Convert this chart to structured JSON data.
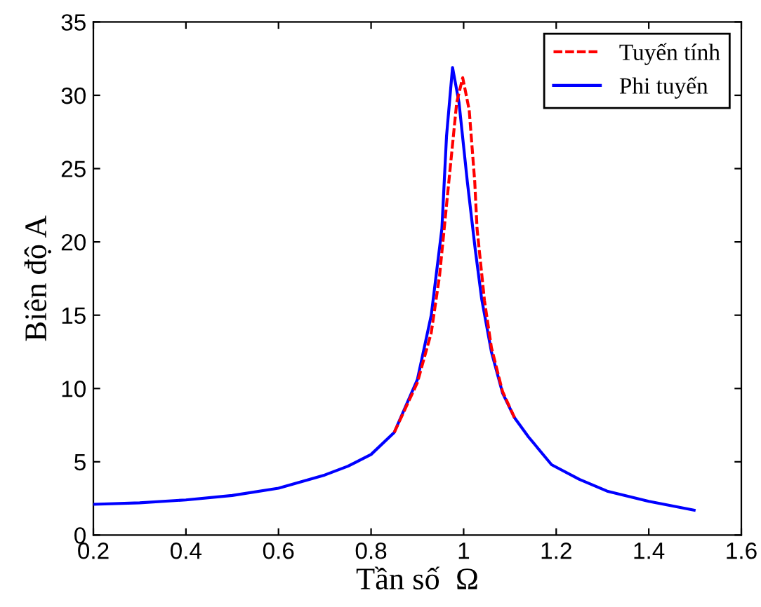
{
  "chart_data": {
    "type": "line",
    "xlabel": "Tần số  Ω",
    "ylabel": "Biên độ A",
    "xlim": [
      0.2,
      1.6
    ],
    "xticks": [
      0.2,
      0.4,
      0.6,
      0.8,
      1,
      1.2,
      1.4,
      1.6
    ],
    "ylim": [
      0,
      35
    ],
    "yticks": [
      0,
      5,
      10,
      15,
      20,
      25,
      30,
      35
    ],
    "grid": false,
    "legend": "top right",
    "series": [
      {
        "name": "Tuyến tính",
        "color": "#ff0000",
        "line_style": "dashed",
        "x": [
          0.85,
          0.9,
          0.93,
          0.948,
          0.968,
          0.985,
          0.998,
          1.012,
          1.024,
          1.029,
          1.045,
          1.06,
          1.084,
          1.11
        ],
        "values": [
          7.0,
          10.4,
          13.8,
          17.7,
          24.1,
          29.5,
          31.2,
          29.0,
          24.1,
          20.9,
          16.0,
          12.8,
          9.8,
          8.0
        ]
      },
      {
        "name": "Phi tuyến",
        "color": "#0000ff",
        "line_style": "solid",
        "x": [
          0.2,
          0.3,
          0.4,
          0.5,
          0.6,
          0.7,
          0.75,
          0.8,
          0.85,
          0.9,
          0.93,
          0.953,
          0.963,
          0.976,
          0.99,
          1.008,
          1.025,
          1.039,
          1.06,
          1.084,
          1.11,
          1.14,
          1.19,
          1.25,
          1.31,
          1.4,
          1.498
        ],
        "values": [
          2.1,
          2.2,
          2.4,
          2.7,
          3.2,
          4.1,
          4.7,
          5.5,
          7.0,
          10.6,
          15.0,
          20.9,
          27.2,
          31.9,
          29.5,
          24.1,
          19.5,
          16.1,
          12.5,
          9.7,
          8.0,
          6.7,
          4.8,
          3.8,
          3.0,
          2.3,
          1.7
        ]
      }
    ]
  }
}
